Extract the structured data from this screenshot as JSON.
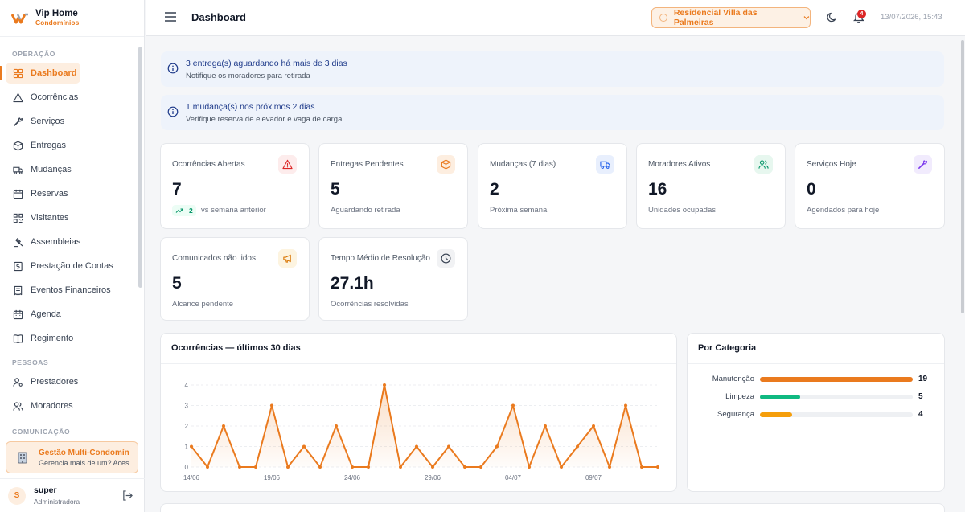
{
  "brand": {
    "name": "Vip Home",
    "sub": "Condomínios"
  },
  "sidebar": {
    "sections": [
      {
        "label": "OPERAÇÃO",
        "items": [
          {
            "label": "Dashboard",
            "icon": "grid-icon",
            "active": true
          },
          {
            "label": "Ocorrências",
            "icon": "warning-icon"
          },
          {
            "label": "Serviços",
            "icon": "wrench-icon"
          },
          {
            "label": "Entregas",
            "icon": "package-icon"
          },
          {
            "label": "Mudanças",
            "icon": "truck-icon"
          },
          {
            "label": "Reservas",
            "icon": "calendar-icon"
          },
          {
            "label": "Visitantes",
            "icon": "qrcode-icon"
          },
          {
            "label": "Assembleias",
            "icon": "gavel-icon"
          },
          {
            "label": "Prestação de Contas",
            "icon": "dollar-doc-icon"
          },
          {
            "label": "Eventos Financeiros",
            "icon": "receipt-icon"
          },
          {
            "label": "Agenda",
            "icon": "calendar-days-icon"
          },
          {
            "label": "Regimento",
            "icon": "book-icon"
          }
        ]
      },
      {
        "label": "PESSOAS",
        "items": [
          {
            "label": "Prestadores",
            "icon": "user-cog-icon"
          },
          {
            "label": "Moradores",
            "icon": "users-icon"
          }
        ]
      },
      {
        "label": "COMUNICAÇÃO",
        "items": []
      }
    ],
    "promo": {
      "title": "Gestão Multi-Condomínio",
      "subtitle": "Gerencia mais de um? Acesse"
    },
    "user": {
      "initial": "S",
      "name": "super",
      "role": "Administradora"
    }
  },
  "header": {
    "title": "Dashboard",
    "condo": "Residencial Villa das Palmeiras",
    "notifications": "4",
    "datetime": "13/07/2026, 15:43"
  },
  "alerts": [
    {
      "title": "3 entrega(s) aguardando há mais de 3 dias",
      "subtitle": "Notifique os moradores para retirada"
    },
    {
      "title": "1 mudança(s) nos próximos 2 dias",
      "subtitle": "Verifique reserva de elevador e vaga de carga"
    }
  ],
  "kpis": [
    {
      "label": "Ocorrências Abertas",
      "value": "7",
      "trend": "+2",
      "sub": "vs semana anterior",
      "icon": "warning-icon",
      "color": "#dc2626",
      "bg": "#fdecec"
    },
    {
      "label": "Entregas Pendentes",
      "value": "5",
      "sub": "Aguardando retirada",
      "icon": "package-icon",
      "color": "#ea7a1e",
      "bg": "#fdeee0"
    },
    {
      "label": "Mudanças (7 dias)",
      "value": "2",
      "sub": "Próxima semana",
      "icon": "truck-icon",
      "color": "#2563eb",
      "bg": "#e8effd"
    },
    {
      "label": "Moradores Ativos",
      "value": "16",
      "sub": "Unidades ocupadas",
      "icon": "users-icon",
      "color": "#059669",
      "bg": "#e7f7ef"
    },
    {
      "label": "Serviços Hoje",
      "value": "0",
      "sub": "Agendados para hoje",
      "icon": "wrench-icon",
      "color": "#7c3aed",
      "bg": "#f1ebfd"
    },
    {
      "label": "Comunicados não lidos",
      "value": "5",
      "sub": "Alcance pendente",
      "icon": "megaphone-icon",
      "color": "#d97706",
      "bg": "#fdf4e0"
    },
    {
      "label": "Tempo Médio de Resolução",
      "value": "27.1h",
      "sub": "Ocorrências resolvidas",
      "icon": "clock-icon",
      "color": "#374151",
      "bg": "#f1f2f4"
    }
  ],
  "chart": {
    "title": "Ocorrências — últimos 30 dias"
  },
  "categories": {
    "title": "Por Categoria",
    "items": [
      {
        "name": "Manutenção",
        "value": 19,
        "color": "#ea7a1e"
      },
      {
        "name": "Limpeza",
        "value": 5,
        "color": "#10b981"
      },
      {
        "name": "Segurança",
        "value": 4,
        "color": "#f59e0b"
      }
    ]
  },
  "chart_data": {
    "type": "area",
    "title": "Ocorrências — últimos 30 dias",
    "xlabel": "",
    "ylabel": "",
    "x_tick_labels": [
      "14/06",
      "19/06",
      "24/06",
      "29/06",
      "04/07",
      "09/07"
    ],
    "x": [
      "14/06",
      "15/06",
      "16/06",
      "17/06",
      "18/06",
      "19/06",
      "20/06",
      "21/06",
      "22/06",
      "23/06",
      "24/06",
      "25/06",
      "26/06",
      "27/06",
      "28/06",
      "29/06",
      "30/06",
      "01/07",
      "02/07",
      "03/07",
      "04/07",
      "05/07",
      "06/07",
      "07/07",
      "08/07",
      "09/07",
      "10/07",
      "11/07",
      "12/07",
      "13/07"
    ],
    "values": [
      1,
      0,
      2,
      0,
      0,
      3,
      0,
      1,
      0,
      2,
      0,
      0,
      4,
      0,
      1,
      0,
      1,
      0,
      0,
      1,
      3,
      0,
      2,
      0,
      1,
      2,
      0,
      3,
      0,
      0
    ],
    "ylim": [
      0,
      4
    ],
    "y_ticks": [
      0,
      1,
      2,
      3,
      4
    ],
    "grid": true,
    "color": "#ea7a1e"
  }
}
